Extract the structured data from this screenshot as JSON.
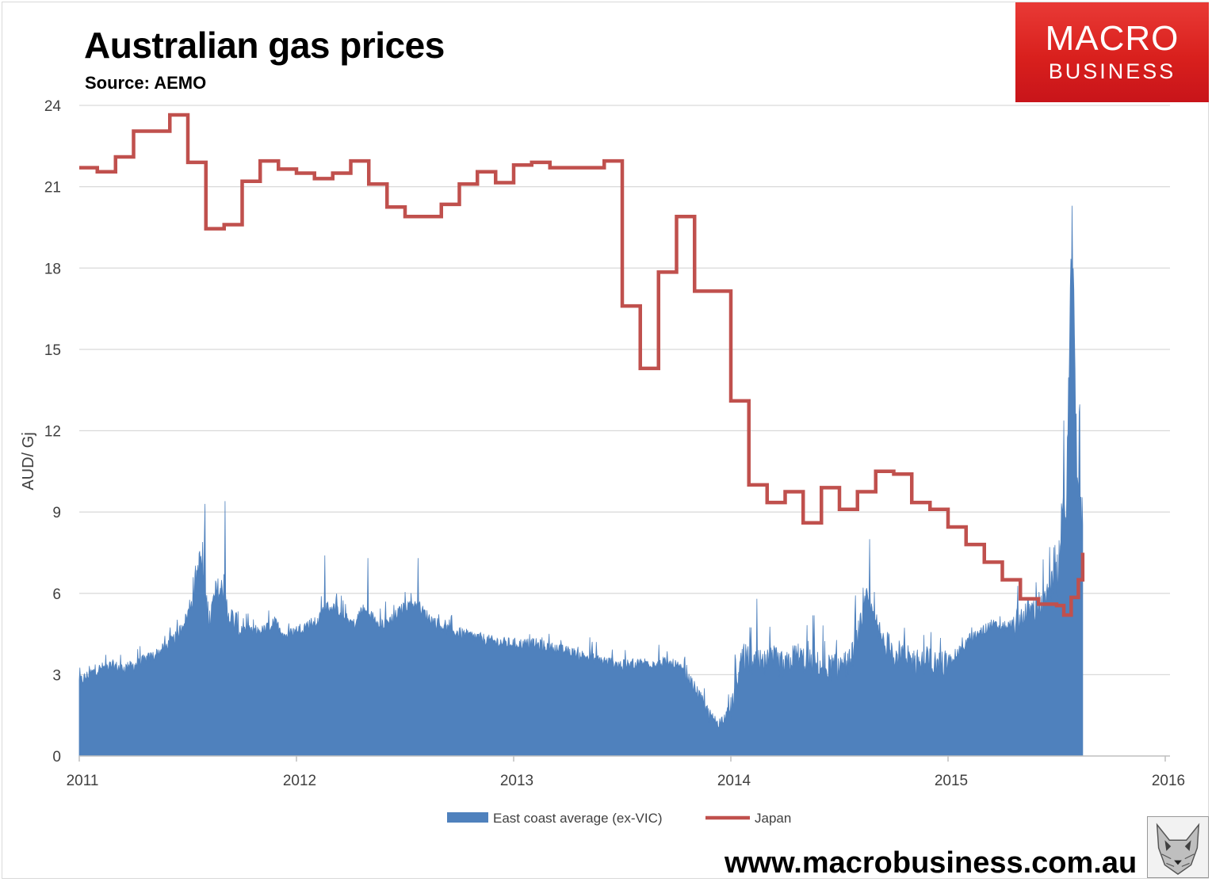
{
  "header": {
    "title": "Australian gas prices",
    "subtitle": "Source: AEMO"
  },
  "logo": {
    "line1": "MACRO",
    "line2": "BUSINESS"
  },
  "footer": {
    "url": "www.macrobusiness.com.au"
  },
  "colors": {
    "series_area": "#4f81bd",
    "series_line": "#c0504d",
    "grid": "#d9d9d9",
    "logo_red": "#d9201d"
  },
  "chart_data": {
    "type": "area",
    "title": "Australian gas prices",
    "subtitle": "Source: AEMO",
    "xlabel": "",
    "ylabel": "AUD/ Gj",
    "xlim": [
      2011,
      2016
    ],
    "ylim": [
      0,
      24
    ],
    "x_ticks": [
      "2011",
      "2012",
      "2013",
      "2014",
      "2015",
      "2016"
    ],
    "y_ticks": [
      "0",
      "3",
      "6",
      "9",
      "12",
      "15",
      "18",
      "21",
      "24"
    ],
    "grid": true,
    "legend_position": "bottom",
    "series": [
      {
        "name": "East coast average (ex-VIC)",
        "kind": "area",
        "x": [
          2011.0,
          2011.05,
          2011.1,
          2011.15,
          2011.2,
          2011.25,
          2011.3,
          2011.35,
          2011.4,
          2011.45,
          2011.5,
          2011.53,
          2011.56,
          2011.58,
          2011.6,
          2011.63,
          2011.66,
          2011.68,
          2011.7,
          2011.75,
          2011.8,
          2011.85,
          2011.9,
          2011.95,
          2012.0,
          2012.05,
          2012.1,
          2012.13,
          2012.18,
          2012.22,
          2012.27,
          2012.3,
          2012.35,
          2012.4,
          2012.45,
          2012.5,
          2012.55,
          2012.57,
          2012.62,
          2012.7,
          2012.8,
          2012.9,
          2013.0,
          2013.1,
          2013.2,
          2013.3,
          2013.4,
          2013.5,
          2013.6,
          2013.7,
          2013.75,
          2013.8,
          2013.85,
          2013.88,
          2013.92,
          2013.95,
          2014.0,
          2014.03,
          2014.06,
          2014.1,
          2014.15,
          2014.2,
          2014.25,
          2014.3,
          2014.35,
          2014.4,
          2014.45,
          2014.5,
          2014.55,
          2014.6,
          2014.63,
          2014.65,
          2014.7,
          2014.75,
          2014.8,
          2014.85,
          2014.9,
          2014.95,
          2015.0,
          2015.05,
          2015.1,
          2015.15,
          2015.2,
          2015.25,
          2015.3,
          2015.35,
          2015.4,
          2015.45,
          2015.48,
          2015.5,
          2015.52,
          2015.54,
          2015.55,
          2015.56,
          2015.57,
          2015.58,
          2015.59,
          2015.6,
          2015.61,
          2015.62
        ],
        "values": [
          2.8,
          3.1,
          3.3,
          3.4,
          3.3,
          3.4,
          3.6,
          3.8,
          4.1,
          4.5,
          5.3,
          6.5,
          7.5,
          6.0,
          5.2,
          6.2,
          6.3,
          5.6,
          5.2,
          4.8,
          4.6,
          4.7,
          5.0,
          4.5,
          4.7,
          4.9,
          5.0,
          5.6,
          5.5,
          5.2,
          4.9,
          5.5,
          5.2,
          4.9,
          5.2,
          5.6,
          5.7,
          5.5,
          5.1,
          4.7,
          4.5,
          4.3,
          4.2,
          4.2,
          4.0,
          3.8,
          3.6,
          3.4,
          3.5,
          3.5,
          3.4,
          3.0,
          2.4,
          1.9,
          1.4,
          1.3,
          1.8,
          3.0,
          3.8,
          3.6,
          3.5,
          3.7,
          3.4,
          3.9,
          3.6,
          3.5,
          3.4,
          3.5,
          3.6,
          5.0,
          6.0,
          5.3,
          4.4,
          4.0,
          3.8,
          3.6,
          3.7,
          3.5,
          3.6,
          3.9,
          4.4,
          4.6,
          4.9,
          4.8,
          4.9,
          5.4,
          5.6,
          5.9,
          6.5,
          7.0,
          8.3,
          9.0,
          12.0,
          15.0,
          19.5,
          16.0,
          12.5,
          10.5,
          9.5,
          8.5
        ],
        "peaks": {
          "2011.58": 9.3,
          "2011.67": 9.4,
          "2012.13": 7.4,
          "2012.33": 7.3,
          "2012.56": 7.3,
          "2013.90": 1.1,
          "2014.12": 5.8,
          "2014.64": 8.0,
          "2015.57": 20.3
        }
      },
      {
        "name": "Japan",
        "kind": "step-line",
        "x": [
          2011.0,
          2011.083,
          2011.167,
          2011.25,
          2011.417,
          2011.5,
          2011.583,
          2011.667,
          2011.75,
          2011.833,
          2011.917,
          2012.0,
          2012.083,
          2012.167,
          2012.25,
          2012.333,
          2012.417,
          2012.5,
          2012.583,
          2012.667,
          2012.75,
          2012.833,
          2012.917,
          2013.0,
          2013.083,
          2013.167,
          2013.25,
          2013.417,
          2013.5,
          2013.583,
          2013.667,
          2013.75,
          2013.833,
          2013.917,
          2014.0,
          2014.083,
          2014.167,
          2014.25,
          2014.333,
          2014.417,
          2014.5,
          2014.583,
          2014.667,
          2014.75,
          2014.833,
          2014.917,
          2015.0,
          2015.083,
          2015.167,
          2015.25,
          2015.333,
          2015.417,
          2015.5,
          2015.533,
          2015.567,
          2015.6,
          2015.62
        ],
        "values": [
          21.7,
          21.55,
          22.1,
          23.05,
          23.65,
          21.9,
          19.45,
          19.6,
          21.2,
          21.95,
          21.65,
          21.5,
          21.3,
          21.5,
          21.95,
          21.1,
          20.25,
          19.9,
          19.9,
          20.35,
          21.1,
          21.55,
          21.15,
          21.8,
          21.9,
          21.7,
          21.7,
          21.95,
          16.6,
          14.3,
          17.85,
          19.9,
          17.15,
          17.15,
          13.1,
          10.0,
          9.35,
          9.75,
          8.6,
          9.9,
          9.1,
          9.75,
          10.5,
          10.4,
          9.35,
          9.1,
          8.45,
          7.8,
          7.15,
          6.5,
          5.8,
          5.6,
          5.55,
          5.2,
          5.85,
          6.5,
          7.5
        ]
      }
    ]
  }
}
